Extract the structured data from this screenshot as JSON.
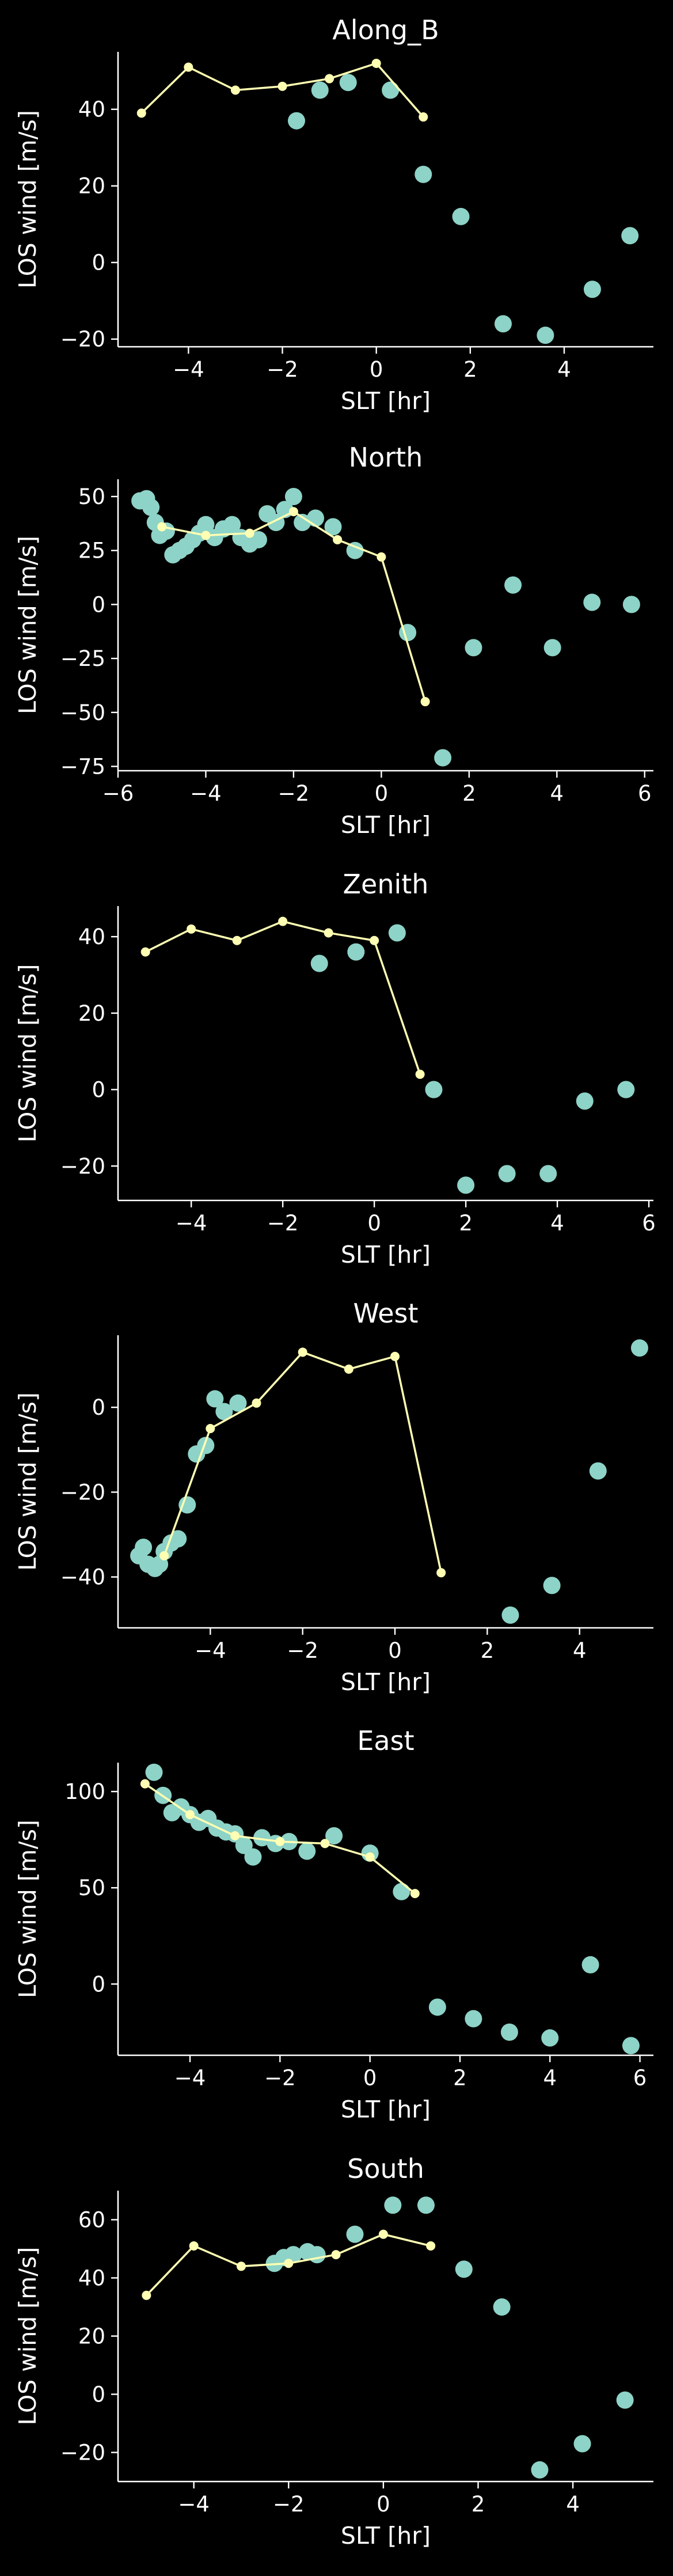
{
  "colors": {
    "background": "#000000",
    "foreground": "#ffffff",
    "scatter": "#8dd3c7",
    "line": "#ffffb3"
  },
  "chart_data": [
    {
      "type": "scatter",
      "title": "Along_B",
      "xlabel": "SLT [hr]",
      "ylabel": "LOS wind [m/s]",
      "xlim": [
        -5.5,
        5.9
      ],
      "ylim": [
        -22,
        55
      ],
      "xticks": [
        -4,
        -2,
        0,
        2,
        4
      ],
      "yticks": [
        -20,
        0,
        20,
        40
      ],
      "series": [
        {
          "kind": "scatter",
          "x": [
            -1.7,
            -1.2,
            -0.6,
            0.3,
            1.0,
            1.8,
            2.7,
            3.6,
            4.6,
            5.4
          ],
          "y": [
            37,
            45,
            47,
            45,
            23,
            12,
            -16,
            -19,
            -7,
            7
          ]
        },
        {
          "kind": "line",
          "x": [
            -5,
            -4,
            -3,
            -2,
            -1,
            0,
            1
          ],
          "y": [
            39,
            51,
            45,
            46,
            48,
            52,
            38
          ]
        }
      ]
    },
    {
      "type": "scatter",
      "title": "North",
      "xlabel": "SLT [hr]",
      "ylabel": "LOS wind [m/s]",
      "xlim": [
        -6,
        6.2
      ],
      "ylim": [
        -77,
        58
      ],
      "xticks": [
        -6,
        -4,
        -2,
        0,
        2,
        4,
        6
      ],
      "yticks": [
        -75,
        -50,
        -25,
        0,
        25,
        50
      ],
      "series": [
        {
          "kind": "scatter",
          "x": [
            -5.5,
            -5.35,
            -5.25,
            -5.15,
            -5.05,
            -4.9,
            -4.75,
            -4.6,
            -4.45,
            -4.3,
            -4.15,
            -4.0,
            -3.8,
            -3.6,
            -3.4,
            -3.2,
            -3.0,
            -2.8,
            -2.6,
            -2.4,
            -2.2,
            -2.0,
            -1.8,
            -1.5,
            -1.1,
            -0.6,
            0.6,
            1.4,
            2.1,
            3.0,
            3.9,
            4.8,
            5.7
          ],
          "y": [
            48,
            49,
            45,
            38,
            32,
            34,
            23,
            25,
            27,
            30,
            33,
            37,
            31,
            35,
            37,
            31,
            28,
            30,
            42,
            38,
            44,
            50,
            38,
            40,
            36,
            25,
            -13,
            -71,
            -20,
            9,
            -20,
            1,
            0
          ]
        },
        {
          "kind": "line",
          "x": [
            -5,
            -4,
            -3,
            -2,
            -1,
            0,
            1
          ],
          "y": [
            36,
            32,
            33,
            43,
            30,
            22,
            -45
          ]
        }
      ]
    },
    {
      "type": "scatter",
      "title": "Zenith",
      "xlabel": "SLT [hr]",
      "ylabel": "LOS wind [m/s]",
      "xlim": [
        -5.6,
        6.1
      ],
      "ylim": [
        -29,
        48
      ],
      "xticks": [
        -4,
        -2,
        0,
        2,
        4,
        6
      ],
      "yticks": [
        -20,
        0,
        20,
        40
      ],
      "series": [
        {
          "kind": "scatter",
          "x": [
            -1.2,
            -0.4,
            0.5,
            1.3,
            2.0,
            2.9,
            3.8,
            4.6,
            5.5
          ],
          "y": [
            33,
            36,
            41,
            0,
            -25,
            -22,
            -22,
            -3,
            0
          ]
        },
        {
          "kind": "line",
          "x": [
            -5,
            -4,
            -3,
            -2,
            -1,
            0,
            1
          ],
          "y": [
            36,
            42,
            39,
            44,
            41,
            39,
            4
          ]
        }
      ]
    },
    {
      "type": "scatter",
      "title": "West",
      "xlabel": "SLT [hr]",
      "ylabel": "LOS wind [m/s]",
      "xlim": [
        -6.0,
        5.6
      ],
      "ylim": [
        -52,
        17
      ],
      "xticks": [
        -4,
        -2,
        0,
        2,
        4
      ],
      "yticks": [
        -40,
        -20,
        0
      ],
      "series": [
        {
          "kind": "scatter",
          "x": [
            -5.55,
            -5.45,
            -5.35,
            -5.2,
            -5.1,
            -5.0,
            -4.85,
            -4.7,
            -4.5,
            -4.3,
            -4.1,
            -3.9,
            -3.7,
            -3.4,
            2.5,
            3.4,
            4.4,
            5.3
          ],
          "y": [
            -35,
            -33,
            -37,
            -38,
            -37,
            -34,
            -32,
            -31,
            -23,
            -11,
            -9,
            2,
            -1,
            1,
            -49,
            -42,
            -15,
            14
          ]
        },
        {
          "kind": "line",
          "x": [
            -5,
            -4,
            -3,
            -2,
            -1,
            0,
            1
          ],
          "y": [
            -35,
            -5,
            1,
            13,
            9,
            12,
            -39
          ]
        }
      ]
    },
    {
      "type": "scatter",
      "title": "East",
      "xlabel": "SLT [hr]",
      "ylabel": "LOS wind [m/s]",
      "xlim": [
        -5.6,
        6.3
      ],
      "ylim": [
        -37,
        115
      ],
      "xticks": [
        -4,
        -2,
        0,
        2,
        4,
        6
      ],
      "yticks": [
        0,
        50,
        100
      ],
      "series": [
        {
          "kind": "scatter",
          "x": [
            -4.8,
            -4.6,
            -4.4,
            -4.2,
            -4.0,
            -3.8,
            -3.6,
            -3.4,
            -3.2,
            -3.0,
            -2.8,
            -2.6,
            -2.4,
            -2.1,
            -1.8,
            -1.4,
            -0.8,
            0,
            0.7,
            1.5,
            2.3,
            3.1,
            4.0,
            4.9,
            5.8
          ],
          "y": [
            110,
            98,
            89,
            92,
            88,
            84,
            86,
            81,
            79,
            78,
            72,
            66,
            76,
            73,
            74,
            69,
            77,
            68,
            48,
            -12,
            -18,
            -25,
            -28,
            10,
            -32
          ]
        },
        {
          "kind": "line",
          "x": [
            -5,
            -4,
            -3,
            -2,
            -1,
            0,
            1
          ],
          "y": [
            104,
            88,
            77,
            74,
            73,
            66,
            47
          ]
        }
      ]
    },
    {
      "type": "scatter",
      "title": "South",
      "xlabel": "SLT [hr]",
      "ylabel": "LOS wind [m/s]",
      "xlim": [
        -5.6,
        5.7
      ],
      "ylim": [
        -30,
        70
      ],
      "xticks": [
        -4,
        -2,
        0,
        2,
        4
      ],
      "yticks": [
        -20,
        0,
        20,
        40,
        60
      ],
      "series": [
        {
          "kind": "scatter",
          "x": [
            -2.3,
            -2.1,
            -1.9,
            -1.6,
            -1.4,
            -0.6,
            0.2,
            0.9,
            1.7,
            2.5,
            3.3,
            4.2,
            5.1
          ],
          "y": [
            45,
            47,
            48,
            49,
            48,
            55,
            65,
            65,
            43,
            30,
            -26,
            -17,
            -2
          ]
        },
        {
          "kind": "line",
          "x": [
            -5,
            -4,
            -3,
            -2,
            -1,
            0,
            1
          ],
          "y": [
            34,
            51,
            44,
            45,
            48,
            55,
            51
          ]
        }
      ]
    }
  ]
}
